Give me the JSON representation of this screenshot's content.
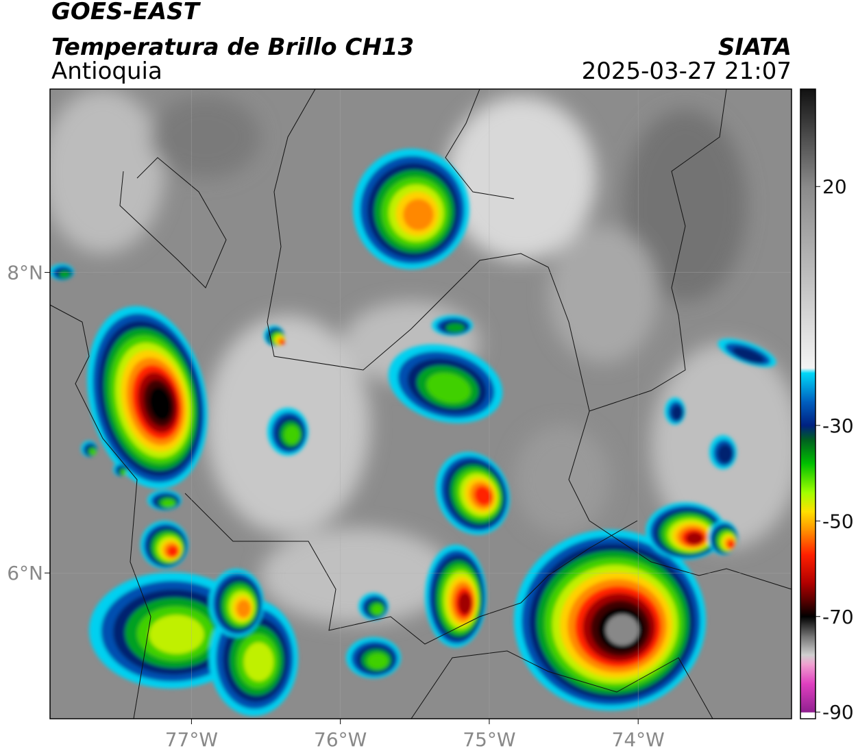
{
  "header": {
    "title": "GOES-EAST",
    "subtitle": "Temperatura de Brillo CH13",
    "region": "Antioquia",
    "source": "SIATA",
    "datetime": "2025-03-27 21:07"
  },
  "map": {
    "xlim": [
      -77.95,
      -72.97
    ],
    "ylim": [
      5.03,
      9.22
    ],
    "xticks": [
      {
        "value": -77,
        "label": "77°W"
      },
      {
        "value": -76,
        "label": "76°W"
      },
      {
        "value": -75,
        "label": "75°W"
      },
      {
        "value": -74,
        "label": "74°W"
      }
    ],
    "yticks": [
      {
        "value": 6,
        "label": "6°N"
      },
      {
        "value": 8,
        "label": "8°N"
      }
    ],
    "grid": true
  },
  "colorbar": {
    "lim": [
      -91.4,
      40.4
    ],
    "ticks": [
      20,
      -30,
      -50,
      -70,
      -90
    ],
    "colormap": [
      [
        40.4,
        "#111111"
      ],
      [
        20,
        "#8a8a8a"
      ],
      [
        -18,
        "#f4f4f4"
      ],
      [
        -19,
        "#00d8f8"
      ],
      [
        -25,
        "#0060c0"
      ],
      [
        -30,
        "#002080"
      ],
      [
        -33,
        "#006020"
      ],
      [
        -38,
        "#00c000"
      ],
      [
        -44,
        "#a0ff00"
      ],
      [
        -48,
        "#ffe000"
      ],
      [
        -52,
        "#ff9000"
      ],
      [
        -57,
        "#ff2000"
      ],
      [
        -63,
        "#b00000"
      ],
      [
        -67,
        "#500000"
      ],
      [
        -70,
        "#000000"
      ],
      [
        -74,
        "#707070"
      ],
      [
        -78,
        "#d0d0d0"
      ],
      [
        -80,
        "#f0a0d0"
      ],
      [
        -84,
        "#e040c0"
      ],
      [
        -90,
        "#902090"
      ],
      [
        -90.1,
        "#ffffff"
      ],
      [
        -91.4,
        "#ffffff"
      ]
    ]
  }
}
